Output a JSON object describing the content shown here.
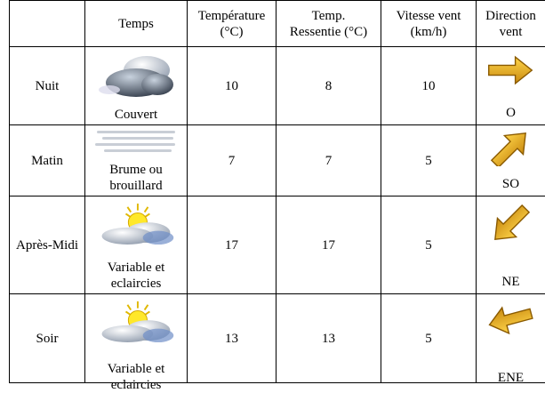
{
  "header": {
    "columns": [
      {
        "lines": [
          "Temps"
        ]
      },
      {
        "lines": [
          "Température",
          "(°C)"
        ]
      },
      {
        "lines": [
          "Temp.",
          "Ressentie (°C)"
        ]
      },
      {
        "lines": [
          "Vitesse vent",
          "(km/h)"
        ]
      },
      {
        "lines": [
          "Direction",
          "vent"
        ]
      }
    ]
  },
  "table": {
    "rows": [
      {
        "period": "Nuit",
        "condition": [
          "Couvert"
        ],
        "temperature": 10,
        "felt": 8,
        "wind_speed": 10,
        "direction": "O"
      },
      {
        "period": "Matin",
        "condition": [
          "Brume ou",
          "brouillard"
        ],
        "temperature": 7,
        "felt": 7,
        "wind_speed": 5,
        "direction": "SO"
      },
      {
        "period": "Après-Midi",
        "condition": [
          "Variable et",
          "eclaircies"
        ],
        "temperature": 17,
        "felt": 17,
        "wind_speed": 5,
        "direction": "NE"
      },
      {
        "period": "Soir",
        "condition": [
          "Variable et",
          "eclaircies"
        ],
        "temperature": 13,
        "felt": 13,
        "wind_speed": 5,
        "direction": "ENE"
      }
    ]
  }
}
